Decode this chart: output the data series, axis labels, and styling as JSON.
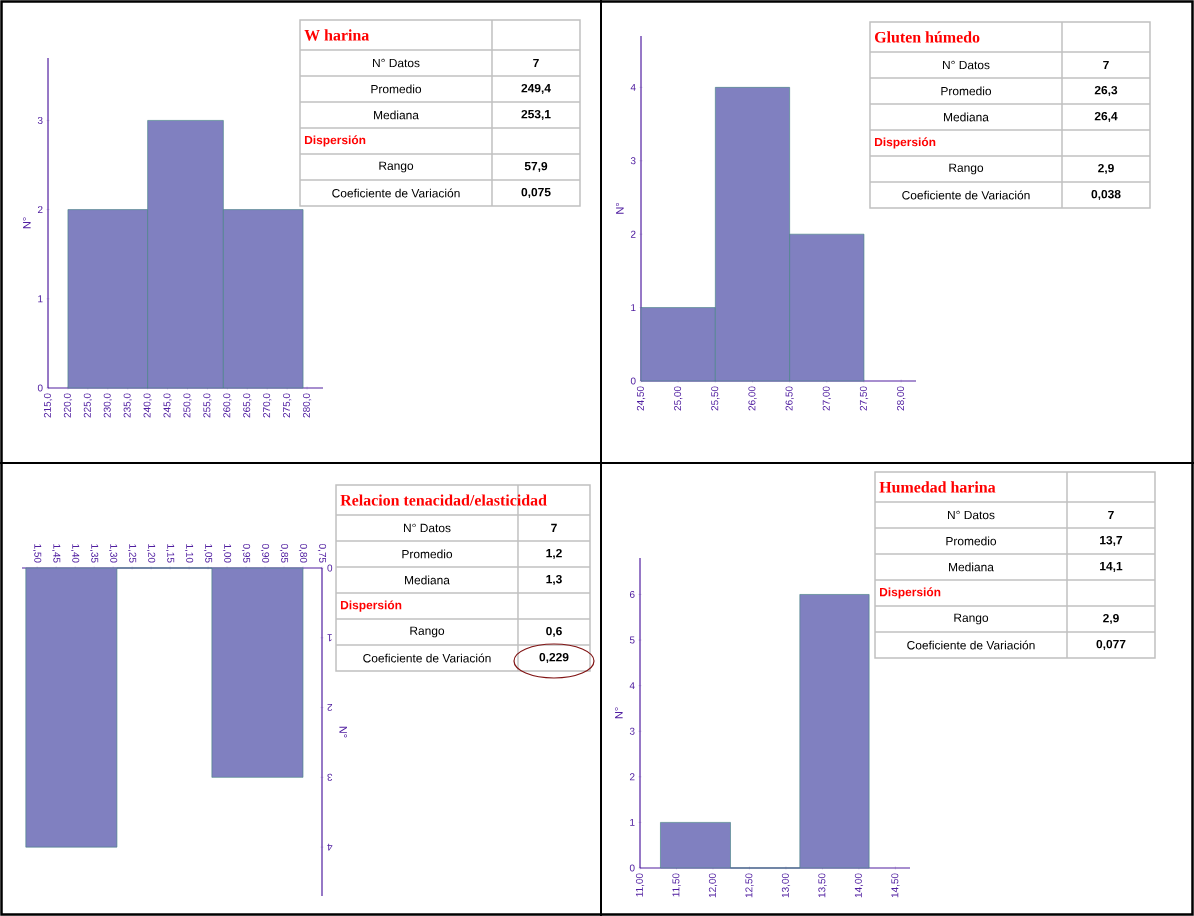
{
  "chart_data": [
    {
      "type": "histogram",
      "title": "W harina",
      "ylabel": "N°",
      "color": "#8080c0",
      "bins": [
        220,
        240,
        259,
        279
      ],
      "values": [
        2,
        3,
        2
      ],
      "xlim": [
        215,
        284
      ],
      "ylim": [
        0,
        3.7
      ],
      "xticks": [
        {
          "value": 215,
          "label": "215,0"
        },
        {
          "value": 220,
          "label": "220,0"
        },
        {
          "value": 225,
          "label": "225,0"
        },
        {
          "value": 230,
          "label": "230,0"
        },
        {
          "value": 235,
          "label": "235,0"
        },
        {
          "value": 240,
          "label": "240,0"
        },
        {
          "value": 245,
          "label": "245,0"
        },
        {
          "value": 250,
          "label": "250,0"
        },
        {
          "value": 255,
          "label": "255,0"
        },
        {
          "value": 260,
          "label": "260,0"
        },
        {
          "value": 265,
          "label": "265,0"
        },
        {
          "value": 270,
          "label": "270,0"
        },
        {
          "value": 275,
          "label": "275,0"
        },
        {
          "value": 280,
          "label": "280,0"
        }
      ],
      "yticks": [
        0,
        1,
        2,
        3
      ],
      "annotations": [
        "N° Datos",
        "7",
        "Promedio",
        "249,4",
        "Mediana",
        "253,1",
        "Dispersión",
        "Rango",
        "57,9",
        "Coeficiente de Variación",
        "0,075"
      ]
    },
    {
      "type": "histogram",
      "title": "Gluten húmedo",
      "ylabel": "N°",
      "color": "#8080c0",
      "bins": [
        24.5,
        25.5,
        26.5,
        27.5
      ],
      "values": [
        1,
        4,
        2
      ],
      "xlim": [
        24.5,
        28.2
      ],
      "ylim": [
        0,
        4.7
      ],
      "xticks": [
        {
          "value": 24.5,
          "label": "24,50"
        },
        {
          "value": 25,
          "label": "25,00"
        },
        {
          "value": 25.5,
          "label": "25,50"
        },
        {
          "value": 26,
          "label": "26,00"
        },
        {
          "value": 26.5,
          "label": "26,50"
        },
        {
          "value": 27,
          "label": "27,00"
        },
        {
          "value": 27.5,
          "label": "27,50"
        },
        {
          "value": 28,
          "label": "28,00"
        }
      ],
      "yticks": [
        0,
        1,
        2,
        3,
        4
      ],
      "annotations": [
        "N° Datos",
        "7",
        "Promedio",
        "26,3",
        "Mediana",
        "26,4",
        "Dispersión",
        "Rango",
        "2,9",
        "Coeficiente de Variación",
        "0,038"
      ]
    },
    {
      "type": "histogram",
      "title": "Relacion tenacidad/elasticidad",
      "ylabel": "N°",
      "color": "#8080c0",
      "bins": [
        0.8,
        1.04,
        1.29,
        1.53
      ],
      "values": [
        3,
        0,
        4
      ],
      "xlim": [
        1.54,
        0.75
      ],
      "ylim": [
        4.7,
        0
      ],
      "xticks": [
        {
          "value": 1.5,
          "label": "1,50"
        },
        {
          "value": 1.45,
          "label": "1,45"
        },
        {
          "value": 1.4,
          "label": "1,40"
        },
        {
          "value": 1.35,
          "label": "1,35"
        },
        {
          "value": 1.3,
          "label": "1,30"
        },
        {
          "value": 1.25,
          "label": "1,25"
        },
        {
          "value": 1.2,
          "label": "1,20"
        },
        {
          "value": 1.15,
          "label": "1,15"
        },
        {
          "value": 1.1,
          "label": "1,10"
        },
        {
          "value": 1.05,
          "label": "1,05"
        },
        {
          "value": 1.0,
          "label": "1,00"
        },
        {
          "value": 0.95,
          "label": "0,95"
        },
        {
          "value": 0.9,
          "label": "0,90"
        },
        {
          "value": 0.85,
          "label": "0,85"
        },
        {
          "value": 0.8,
          "label": "0,80"
        },
        {
          "value": 0.75,
          "label": "0,75"
        }
      ],
      "yticks": [
        0,
        1,
        2,
        3,
        4
      ],
      "annotations": [
        "N° Datos",
        "7",
        "Promedio",
        "1,2",
        "Mediana",
        "1,3",
        "Dispersión",
        "Rango",
        "0,6",
        "Coeficiente de Variación",
        "0,229"
      ]
    },
    {
      "type": "histogram",
      "title": "Humedad harina",
      "ylabel": "N°",
      "color": "#8080c0",
      "bins": [
        11.28,
        12.24,
        13.19,
        14.14
      ],
      "values": [
        1,
        0,
        6
      ],
      "xlim": [
        11.0,
        14.7
      ],
      "ylim": [
        0,
        6.8
      ],
      "xticks": [
        {
          "value": 11,
          "label": "11,00"
        },
        {
          "value": 11.5,
          "label": "11,50"
        },
        {
          "value": 12,
          "label": "12,00"
        },
        {
          "value": 12.5,
          "label": "12,50"
        },
        {
          "value": 13,
          "label": "13,00"
        },
        {
          "value": 13.5,
          "label": "13,50"
        },
        {
          "value": 14,
          "label": "14,00"
        },
        {
          "value": 14.5,
          "label": "14,50"
        }
      ],
      "yticks": [
        0,
        1,
        2,
        3,
        4,
        5,
        6
      ],
      "annotations": [
        "N° Datos",
        "7",
        "Promedio",
        "13,7",
        "Mediana",
        "14,1",
        "Dispersión",
        "Rango",
        "2,9",
        "Coeficiente de Variación",
        "0,077"
      ]
    }
  ]
}
